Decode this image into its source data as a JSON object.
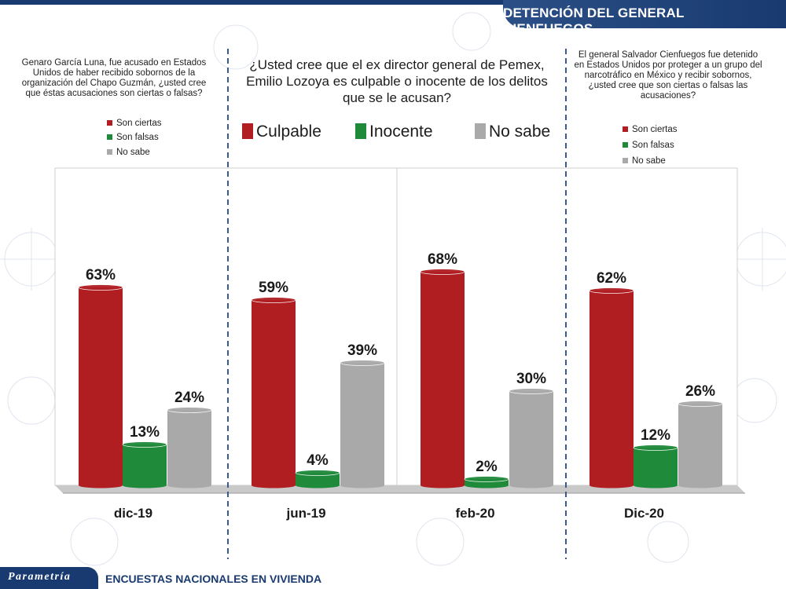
{
  "header": {
    "title": "DETENCIÓN DEL GENERAL CIENFUEGOS"
  },
  "questions": {
    "left": "Genaro García Luna, fue acusado en Estados Unidos de haber recibido sobornos de la organización del Chapo Guzmán, ¿usted cree que éstas acusaciones son ciertas o falsas?",
    "center": "¿Usted cree que el ex director general de Pemex, Emilio Lozoya es culpable o inocente de los delitos que se le acusan?",
    "right": "El general Salvador Cienfuegos fue detenido en Estados Unidos por proteger a un grupo del narcotráfico en México y recibir sobornos, ¿usted cree que son ciertas o falsas las acusaciones?"
  },
  "legends": {
    "left": [
      "Son ciertas",
      "Son falsas",
      "No sabe"
    ],
    "center": [
      "Culpable",
      "Inocente",
      "No sabe"
    ],
    "right": [
      "Son ciertas",
      "Son falsas",
      "No sabe"
    ]
  },
  "colors": {
    "red": "#b01e22",
    "green": "#1f8a3a",
    "gray": "#a9a9a9",
    "navy": "#183a70"
  },
  "footer": {
    "brand": "Parametría",
    "text": "ENCUESTAS NACIONALES EN VIVIENDA"
  },
  "chart_data": {
    "type": "bar",
    "categories": [
      "dic-19",
      "jun-19",
      "feb-20",
      "Dic-20"
    ],
    "series": [
      {
        "name": "Son ciertas / Culpable",
        "values": [
          63,
          59,
          68,
          62
        ]
      },
      {
        "name": "Son falsas / Inocente",
        "values": [
          13,
          4,
          2,
          12
        ]
      },
      {
        "name": "No sabe",
        "values": [
          24,
          39,
          30,
          26
        ]
      }
    ],
    "value_suffix": "%",
    "ylim": [
      0,
      100
    ],
    "grid": false
  }
}
